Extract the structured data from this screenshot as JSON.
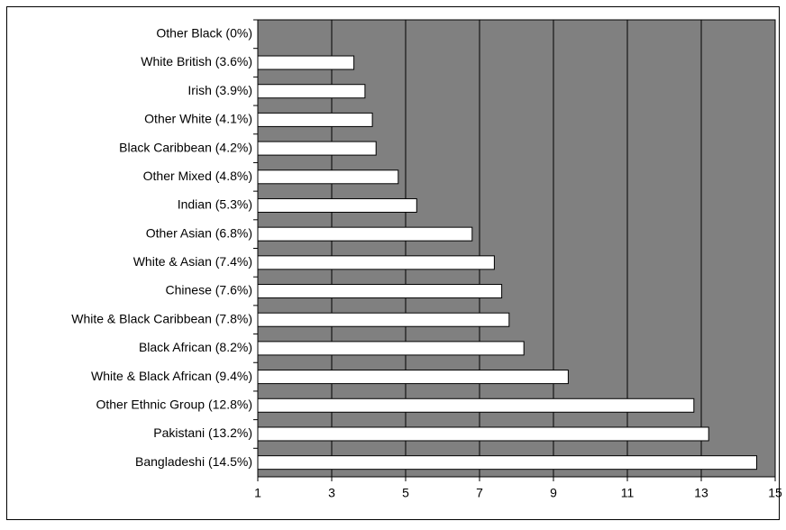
{
  "chart_data": {
    "type": "bar",
    "orientation": "horizontal",
    "categories": [
      "Other Black (0%)",
      "White British (3.6%)",
      "Irish (3.9%)",
      "Other White (4.1%)",
      "Black Caribbean (4.2%)",
      "Other Mixed (4.8%)",
      "Indian (5.3%)",
      "Other Asian (6.8%)",
      "White & Asian (7.4%)",
      "Chinese (7.6%)",
      "White & Black Caribbean (7.8%)",
      "Black African (8.2%)",
      "White & Black African (9.4%)",
      "Other Ethnic Group (12.8%)",
      "Pakistani (13.2%)",
      "Bangladeshi (14.5%)"
    ],
    "values": [
      0,
      3.6,
      3.9,
      4.1,
      4.2,
      4.8,
      5.3,
      6.8,
      7.4,
      7.6,
      7.8,
      8.2,
      9.4,
      12.8,
      13.2,
      14.5
    ],
    "color": "#ffffff",
    "plot_background": "#808080",
    "xlim": [
      1,
      15
    ],
    "xticks": [
      1,
      3,
      5,
      7,
      9,
      11,
      13,
      15
    ],
    "grid": true
  }
}
